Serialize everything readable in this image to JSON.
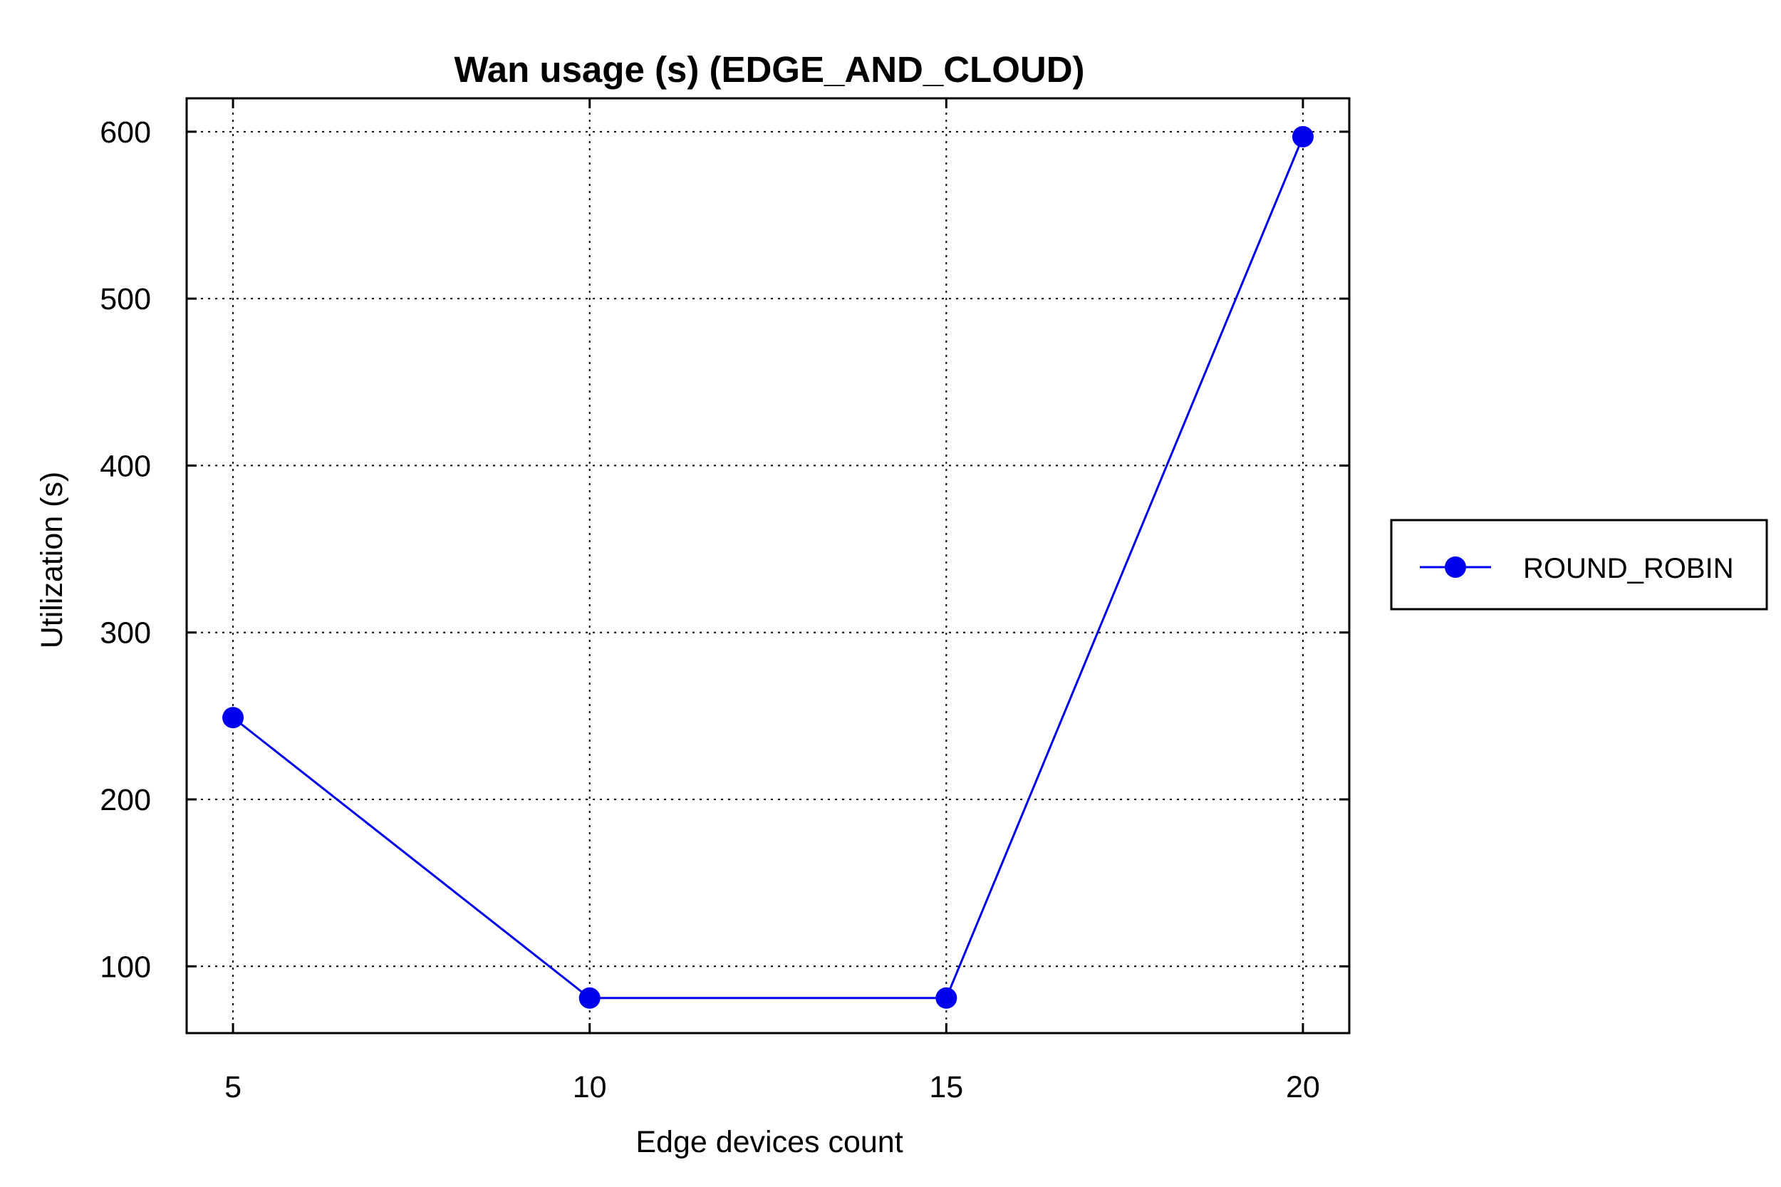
{
  "chart_data": {
    "type": "line",
    "title": "Wan usage (s) (EDGE_AND_CLOUD)",
    "xlabel": "Edge devices count",
    "ylabel": "Utilization (s)",
    "x": [
      5,
      10,
      15,
      20
    ],
    "xticks": [
      5,
      10,
      15,
      20
    ],
    "yticks": [
      100,
      200,
      300,
      400,
      500,
      600
    ],
    "xlim": [
      4.35,
      20.65
    ],
    "ylim": [
      60,
      620
    ],
    "grid": true,
    "legend_position": "outside-right",
    "series": [
      {
        "name": "ROUND_ROBIN",
        "values": [
          249,
          81,
          81,
          597
        ],
        "color": "#0000ee",
        "marker": "circle"
      }
    ]
  }
}
